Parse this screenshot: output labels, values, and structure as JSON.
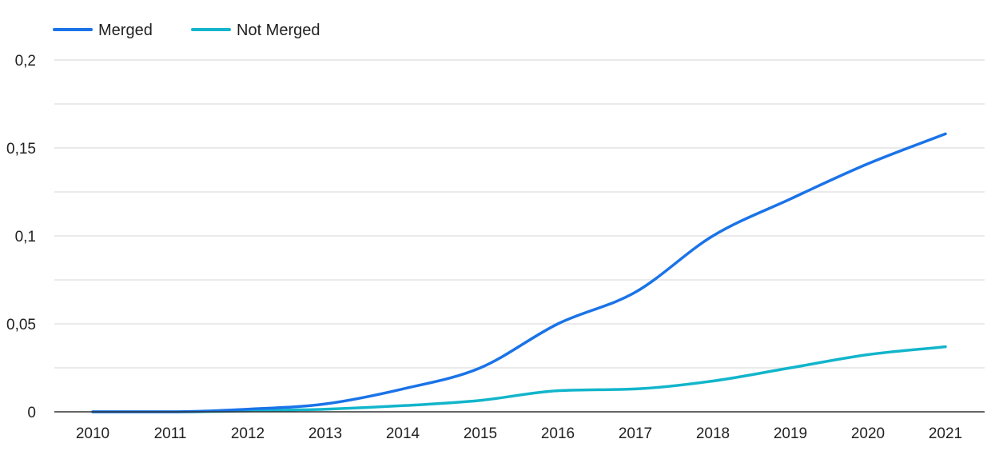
{
  "chart_data": {
    "type": "line",
    "x": [
      "2010",
      "2011",
      "2012",
      "2013",
      "2014",
      "2015",
      "2016",
      "2017",
      "2018",
      "2019",
      "2020",
      "2021"
    ],
    "series": [
      {
        "name": "Merged",
        "color": "#1a73e8",
        "values": [
          0,
          0,
          0.0015,
          0.0045,
          0.013,
          0.025,
          0.05,
          0.068,
          0.1,
          0.121,
          0.141,
          0.158
        ]
      },
      {
        "name": "Not Merged",
        "color": "#12b5cb",
        "values": [
          0,
          0,
          0.0005,
          0.0015,
          0.0035,
          0.0065,
          0.012,
          0.013,
          0.0175,
          0.025,
          0.0325,
          0.037
        ]
      }
    ],
    "y_ticks": [
      "0",
      "0,05",
      "0,1",
      "0,15",
      "0,2"
    ],
    "ylim": [
      0,
      0.2
    ],
    "grid": true,
    "legend_position": "top-left"
  }
}
